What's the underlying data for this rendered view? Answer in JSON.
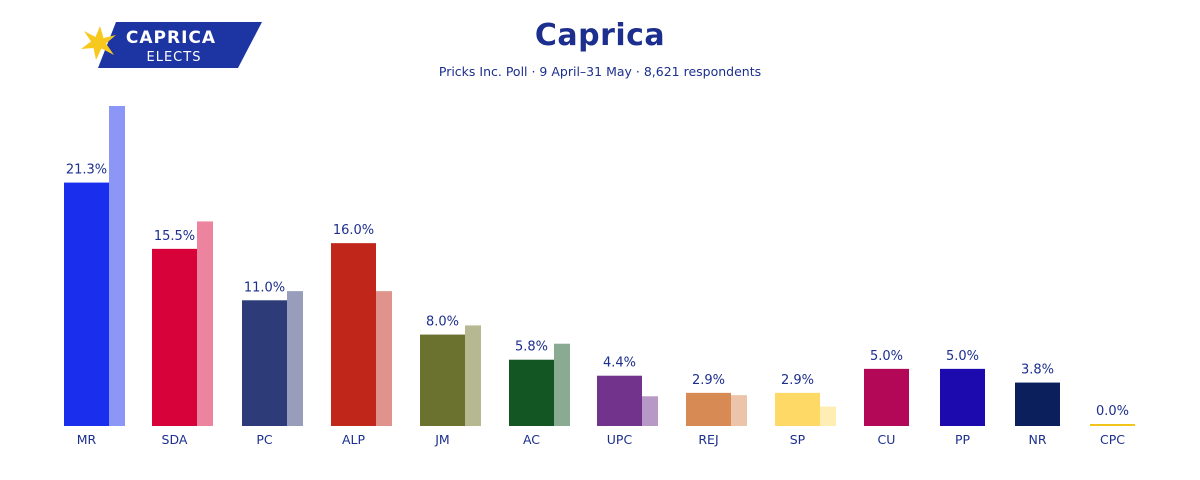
{
  "header": {
    "logo_line1": "CAPRICA",
    "logo_line2": "ELECTS",
    "title": "Caprica",
    "subtitle": "Pricks Inc. Poll · 9 April–31 May · 8,621 respondents"
  },
  "colors": {
    "brand": "#1c2f8e",
    "logo_bg": "#1c35a3",
    "star": "#f7c91e"
  },
  "chart_data": {
    "type": "bar",
    "title": "Caprica",
    "subtitle": "Pricks Inc. Poll · 9 April–31 May · 8,621 respondents",
    "xlabel": "",
    "ylabel": "",
    "ylim": [
      0,
      30
    ],
    "grid": false,
    "legend": "none",
    "categories": [
      "MR",
      "SDA",
      "PC",
      "ALP",
      "JM",
      "AC",
      "UPC",
      "REJ",
      "SP",
      "CU",
      "PP",
      "NR",
      "CPC"
    ],
    "series": [
      {
        "values": [
          21.3,
          15.5,
          11.0,
          16.0,
          8.0,
          5.8,
          4.4,
          2.9,
          2.9,
          5.0,
          5.0,
          3.8,
          0.0
        ],
        "labels": [
          "21.3%",
          "15.5%",
          "11.0%",
          "16.0%",
          "8.0%",
          "5.8%",
          "4.4%",
          "2.9%",
          "2.9%",
          "5.0%",
          "5.0%",
          "3.8%",
          "0.0%"
        ],
        "colors": [
          "#1a2eee",
          "#d8023b",
          "#2d3c78",
          "#c0271a",
          "#6b7230",
          "#145524",
          "#71338b",
          "#d88a55",
          "#fed966",
          "#b30758",
          "#1d0aaf",
          "#0b1f5c",
          "#f2c51d"
        ]
      },
      {
        "values": [
          28.0,
          17.9,
          11.8,
          11.8,
          8.8,
          7.2,
          2.6,
          2.7,
          1.7,
          null,
          null,
          null,
          null
        ],
        "colors": [
          "#8b96f6",
          "#ec839f",
          "#979dbb",
          "#e0938c",
          "#b5b890",
          "#8aaa91",
          "#b799c5",
          "#ecc4aa",
          "#feeeb3",
          null,
          null,
          null,
          null
        ]
      }
    ]
  }
}
